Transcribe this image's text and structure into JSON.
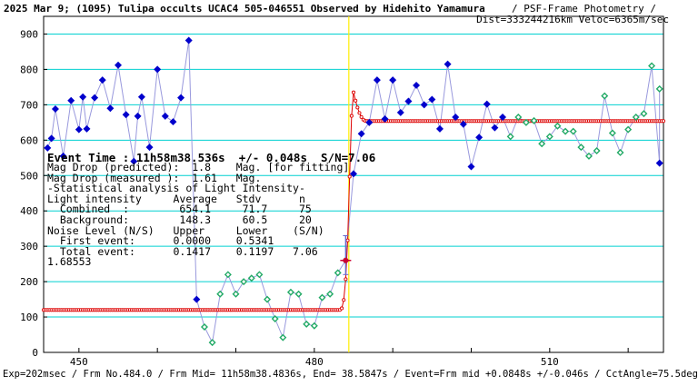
{
  "header": {
    "title": "2025 Mar 9; (1095) Tulipa occults UCAC4 505-046551 Observed by Hidehito Yamamura",
    "method": " / PSF-Frame Photometry /",
    "dist": "Dist=333244216km Veloc=6365m/sec"
  },
  "event_line": "Event Time : 11h58m38.536s  +/- 0.048s  S/N=7.06",
  "stats_lines": [
    "Mag Drop (predicted):  1.8    Mag. [for fitting]",
    "Mag Drop (measured ):  1.61   Mag.",
    "-Statistical analysis of Light Intensity-",
    "Light intensity     Average   Stdv      n",
    "  Combined  :        654.1     71.7     75",
    "  Background:        148.3     60.5     20",
    "Noise Level (N/S)   Upper     Lower    (S/N)",
    "  First event:      0.0000    0.5341",
    "  Total event:      0.1417    0.1197   7.06",
    "1.68553"
  ],
  "footer": "Exp=202msec / Frm No.484.0 / Frm Mid= 11h58m38.4836s,  End= 38.5847s / Event=Frm mid +0.0848s +/-0.046s / CctAngle=75.5deg",
  "colors": {
    "grid": "#00d0d0",
    "blue_points": "#0000cc",
    "green_points": "#22aa66",
    "connector": "#9999dd",
    "fit": "#dd0000",
    "event_line": "#ffee00",
    "event_marker": "#cc0033"
  },
  "chart_data": {
    "type": "line",
    "xlim": [
      445.5,
      524.5
    ],
    "ylim": [
      0,
      950
    ],
    "xticks": [
      450,
      460,
      470,
      480,
      490,
      500,
      510,
      520
    ],
    "xtick_labels": [
      {
        "value": 450,
        "label": "450"
      },
      {
        "value": 480,
        "label": "480"
      },
      {
        "value": 510,
        "label": "510"
      }
    ],
    "yticks": [
      0,
      100,
      200,
      300,
      400,
      500,
      600,
      700,
      800,
      900
    ],
    "ytick_labels": [
      "0",
      "100",
      "200",
      "300",
      "400",
      "500",
      "600",
      "700",
      "800",
      "900"
    ],
    "grid": true,
    "event_frame": 484.4,
    "event_marker": {
      "x": 484.0,
      "y": 260,
      "err_low": 220,
      "err_high": 330
    },
    "fit_levels": {
      "bottom": 120,
      "top": 654,
      "step_x": 484.4,
      "overshoot_peak": 735
    },
    "series": [
      {
        "marker": "diamond-blue",
        "points": [
          [
            446,
            578
          ],
          [
            446.5,
            605
          ],
          [
            447,
            688
          ],
          [
            448,
            555
          ],
          [
            449,
            712
          ],
          [
            450,
            630
          ],
          [
            450.5,
            722
          ],
          [
            451,
            632
          ],
          [
            452,
            720
          ],
          [
            453,
            770
          ],
          [
            454,
            690
          ],
          [
            455,
            812
          ],
          [
            456,
            672
          ],
          [
            457,
            540
          ],
          [
            457.5,
            668
          ],
          [
            458,
            722
          ],
          [
            459,
            580
          ],
          [
            460,
            800
          ],
          [
            461,
            668
          ],
          [
            462,
            652
          ],
          [
            463,
            720
          ],
          [
            464,
            882
          ],
          [
            465,
            150
          ],
          [
            485,
            505
          ],
          [
            486,
            618
          ],
          [
            487,
            650
          ],
          [
            488,
            770
          ],
          [
            489,
            660
          ],
          [
            490,
            770
          ],
          [
            491,
            678
          ],
          [
            492,
            710
          ],
          [
            493,
            755
          ],
          [
            494,
            700
          ],
          [
            495,
            715
          ],
          [
            496,
            632
          ],
          [
            497,
            815
          ],
          [
            498,
            665
          ],
          [
            499,
            645
          ],
          [
            500,
            525
          ],
          [
            501,
            608
          ],
          [
            502,
            702
          ],
          [
            503,
            635
          ],
          [
            504,
            665
          ],
          [
            524,
            535
          ]
        ]
      },
      {
        "marker": "diamond-green",
        "points": [
          [
            466,
            72
          ],
          [
            467,
            28
          ],
          [
            468,
            165
          ],
          [
            469,
            220
          ],
          [
            470,
            165
          ],
          [
            471,
            200
          ],
          [
            472,
            210
          ],
          [
            473,
            220
          ],
          [
            474,
            150
          ],
          [
            475,
            95
          ],
          [
            476,
            42
          ],
          [
            477,
            170
          ],
          [
            478,
            165
          ],
          [
            479,
            80
          ],
          [
            480,
            75
          ],
          [
            481,
            155
          ],
          [
            482,
            165
          ],
          [
            483,
            225
          ],
          [
            484,
            260
          ],
          [
            505,
            610
          ],
          [
            506,
            665
          ],
          [
            507,
            650
          ],
          [
            508,
            655
          ],
          [
            509,
            590
          ],
          [
            510,
            610
          ],
          [
            511,
            640
          ],
          [
            512,
            625
          ],
          [
            513,
            625
          ],
          [
            514,
            580
          ],
          [
            515,
            555
          ],
          [
            516,
            570
          ],
          [
            517,
            725
          ],
          [
            518,
            620
          ],
          [
            519,
            565
          ],
          [
            520,
            630
          ],
          [
            521,
            665
          ],
          [
            522,
            675
          ],
          [
            523,
            810
          ],
          [
            524,
            745
          ]
        ]
      }
    ]
  }
}
